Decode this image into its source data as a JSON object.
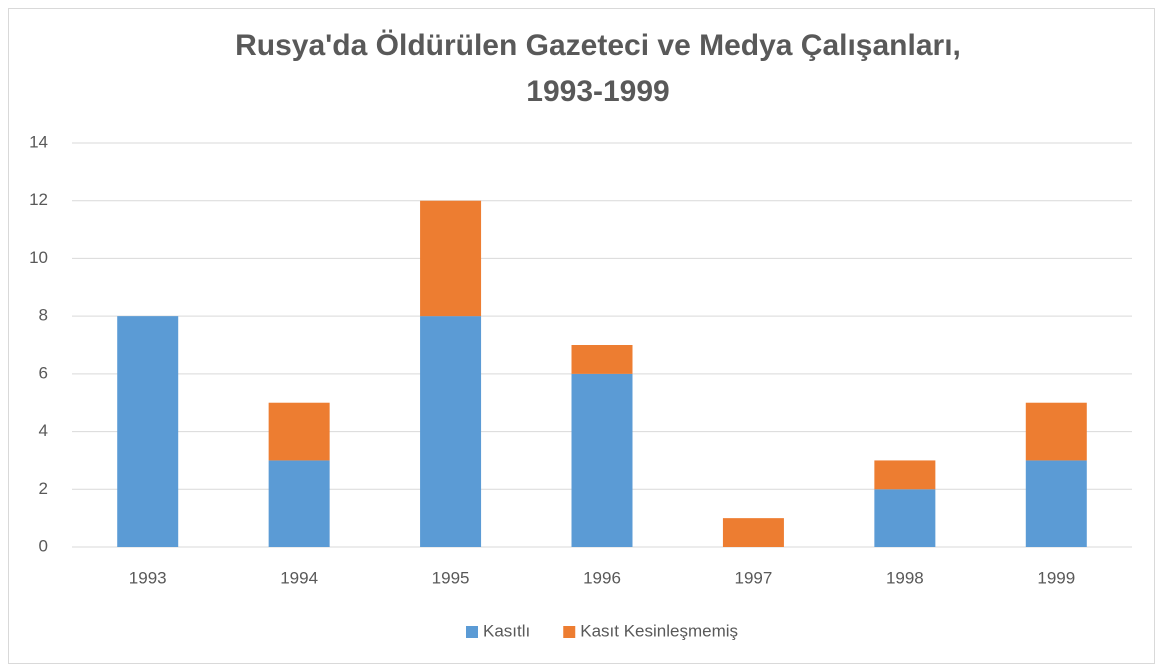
{
  "chart_data": {
    "type": "stacked_bar",
    "title": [
      "Rusya'da Öldürülen Gazeteci ve Medya Çalışanları,",
      "1993-1999"
    ],
    "categories": [
      "1993",
      "1994",
      "1995",
      "1996",
      "1997",
      "1998",
      "1999"
    ],
    "series": [
      {
        "name": "Kasıtlı",
        "color": "#5b9bd5",
        "values": [
          8,
          3,
          8,
          6,
          0,
          2,
          3
        ]
      },
      {
        "name": "Kasıt Kesinleşmemiş",
        "color": "#ed7d31",
        "values": [
          0,
          2,
          4,
          1,
          1,
          1,
          2
        ]
      }
    ],
    "ylim": [
      0,
      14
    ],
    "yticks": [
      0,
      2,
      4,
      6,
      8,
      10,
      12,
      14
    ],
    "grid": true,
    "legend": "bottom"
  }
}
